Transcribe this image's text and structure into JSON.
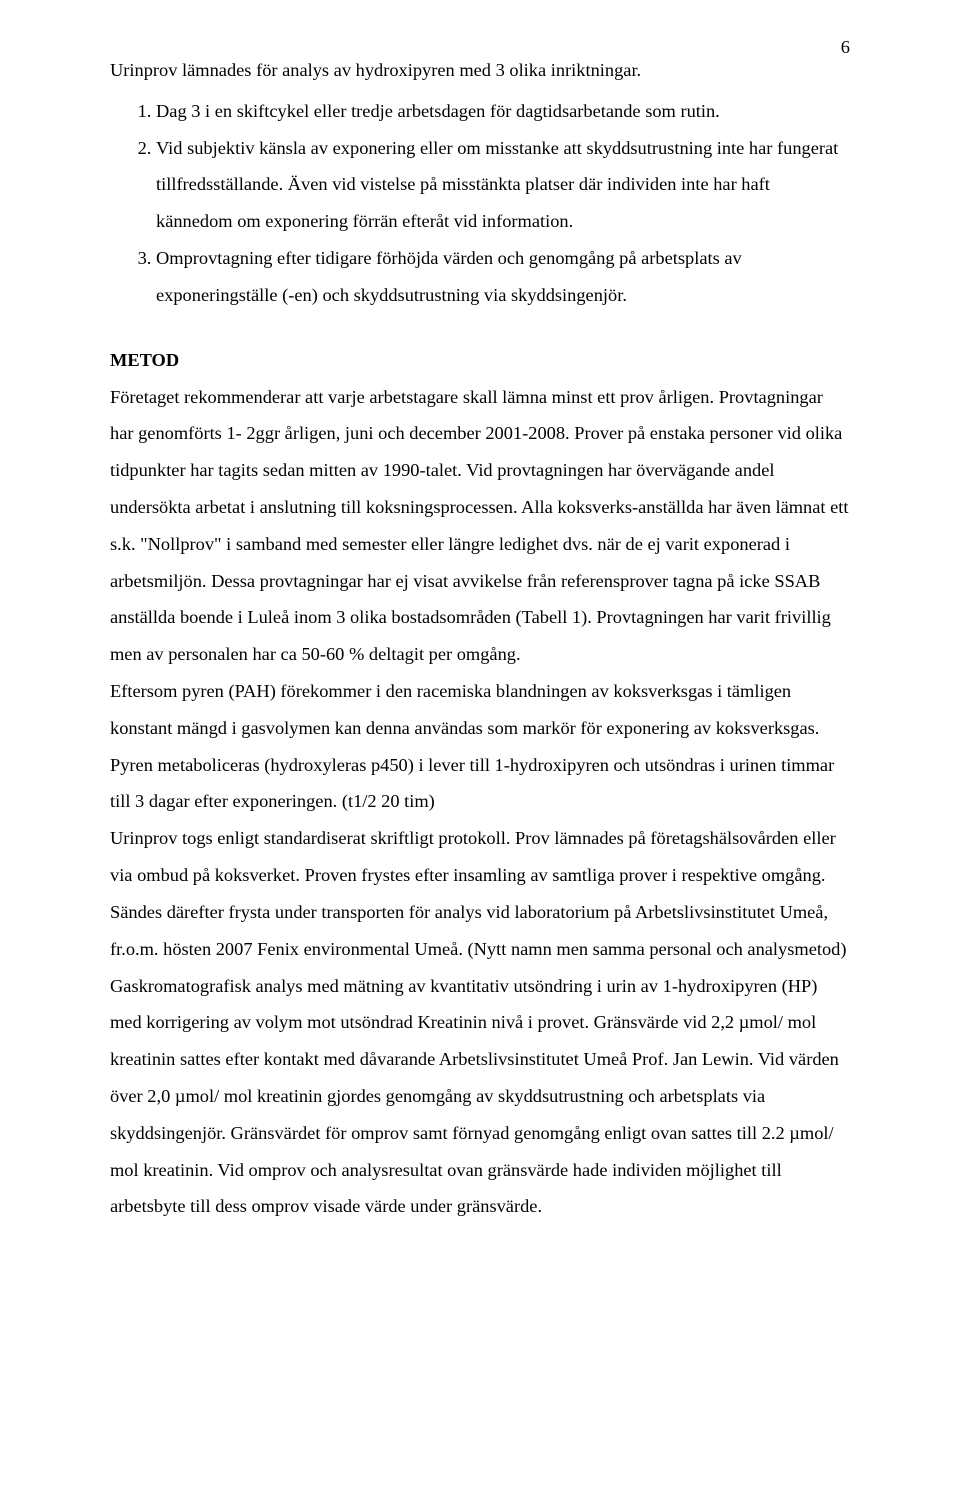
{
  "page_number": "6",
  "intro": "Urinprov lämnades för analys av hydroxipyren med 3 olika inriktningar.",
  "list": {
    "item1": "Dag 3 i en skiftcykel eller tredje arbetsdagen för dagtidsarbetande som rutin.",
    "item2": "Vid subjektiv känsla av exponering eller om misstanke att skyddsutrustning inte har fungerat tillfredsställande. Även vid vistelse på misstänkta platser där individen inte har haft kännedom om exponering förrän efteråt vid information.",
    "item3": "Omprovtagning efter tidigare förhöjda värden och genomgång på arbetsplats av exponeringställe (-en) och skyddsutrustning via skyddsingenjör."
  },
  "section_title": "METOD",
  "paragraphs": {
    "p1": "Företaget rekommenderar att varje arbetstagare skall lämna minst ett prov årligen. Provtagningar har genomförts 1- 2ggr årligen, juni och december 2001-2008. Prover på enstaka personer vid olika tidpunkter har tagits sedan mitten av 1990-talet. Vid provtagningen har övervägande andel undersökta arbetat i anslutning till koksningsprocessen. Alla koksverks-anställda har även lämnat ett s.k. \"Nollprov\" i samband med semester eller längre ledighet dvs. när de ej varit exponerad i arbetsmiljön. Dessa provtagningar har ej visat avvikelse från referensprover tagna på icke SSAB anställda boende i Luleå inom 3 olika bostadsområden (Tabell 1). Provtagningen har varit frivillig men av personalen har ca 50-60 % deltagit per omgång.",
    "p2": "Eftersom pyren (PAH) förekommer i den racemiska blandningen av koksverksgas i tämligen konstant mängd i gasvolymen kan denna användas som markör för exponering av koksverksgas. Pyren metaboliceras (hydroxyleras p450) i lever till 1-hydroxipyren och utsöndras i urinen timmar till 3 dagar efter exponeringen. (t1/2 20 tim)",
    "p3": "Urinprov togs enligt standardiserat skriftligt protokoll. Prov lämnades på företagshälsovården eller via ombud på koksverket. Proven frystes efter insamling av samtliga prover i respektive omgång. Sändes därefter frysta under transporten för analys vid laboratorium på Arbetslivsinstitutet Umeå, fr.o.m. hösten 2007 Fenix environmental Umeå. (Nytt namn men samma personal och analysmetod)",
    "p4": "Gaskromatografisk analys med mätning av kvantitativ utsöndring i urin av 1-hydroxipyren (HP) med korrigering av volym mot utsöndrad Kreatinin nivå i provet. Gränsvärde vid 2,2 µmol/ mol kreatinin sattes efter kontakt med dåvarande Arbetslivsinstitutet Umeå Prof. Jan Lewin. Vid värden över 2,0 µmol/ mol kreatinin gjordes genomgång av skyddsutrustning och arbetsplats via skyddsingenjör. Gränsvärdet för omprov samt förnyad genomgång enligt ovan sattes till 2.2 µmol/ mol kreatinin. Vid omprov och analysresultat ovan gränsvärde hade individen möjlighet till arbetsbyte till dess omprov visade värde under gränsvärde."
  }
}
